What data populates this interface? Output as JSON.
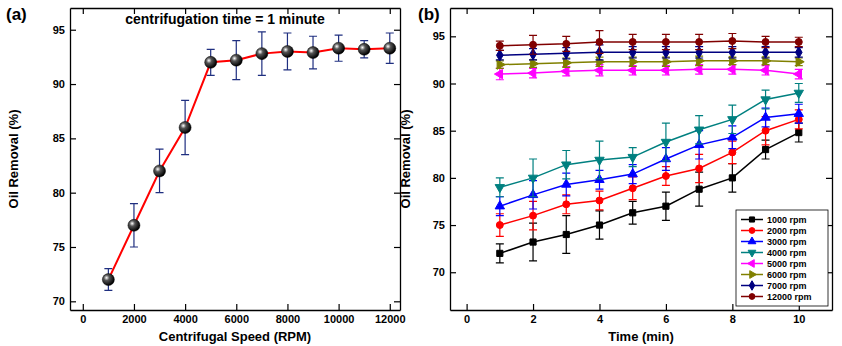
{
  "chart_data": [
    {
      "type": "line",
      "title": "(a)",
      "annotations": [
        "centrifugation time = 1 minute"
      ],
      "x_label": "Centrifugal Speed (RPM)",
      "y_label": "Oil Removal (%)",
      "x": [
        1000,
        2000,
        3000,
        4000,
        5000,
        6000,
        7000,
        8000,
        9000,
        10000,
        11000,
        12000
      ],
      "values": [
        72,
        77,
        82,
        86,
        92,
        92.2,
        92.8,
        93,
        92.9,
        93.3,
        93.2,
        93.3
      ],
      "errors": [
        1,
        2,
        2,
        2.5,
        1.2,
        1.8,
        2,
        1.7,
        1.5,
        1.2,
        0.8,
        1.4
      ],
      "color": "#ff0000",
      "marker": "sphere",
      "xlim": [
        -500,
        12400
      ],
      "ylim": [
        69.2,
        97
      ],
      "xticks": [
        0,
        2000,
        4000,
        6000,
        8000,
        10000,
        12000
      ],
      "yticks": [
        70,
        75,
        80,
        85,
        90,
        95
      ]
    },
    {
      "type": "line",
      "title": "(b)",
      "x_label": "Time (min)",
      "y_label": "Oil Removal (%)",
      "x": [
        1,
        2,
        3,
        4,
        5,
        6,
        7,
        8,
        9,
        10
      ],
      "series": [
        {
          "name": "1000 rpm",
          "color": "#000000",
          "marker": "square",
          "values": [
            72,
            73.2,
            74,
            75,
            76.3,
            77,
            78.8,
            80,
            83,
            84.8
          ],
          "errors": [
            1,
            2,
            2,
            1.5,
            1.2,
            1.5,
            1.8,
            1.5,
            1,
            1
          ]
        },
        {
          "name": "2000 rpm",
          "color": "#ff0000",
          "marker": "circle",
          "values": [
            75,
            76,
            77.2,
            77.6,
            78.9,
            80.2,
            81,
            82.7,
            85,
            86.2
          ],
          "errors": [
            1.2,
            1.5,
            1,
            1,
            1.2,
            1,
            1.5,
            1.2,
            1.5,
            1
          ]
        },
        {
          "name": "3000 rpm",
          "color": "#0000ff",
          "marker": "triangle-up",
          "values": [
            77,
            78.2,
            79.3,
            79.8,
            80.4,
            82,
            83.5,
            84.3,
            86.4,
            86.8
          ],
          "errors": [
            1,
            1.5,
            1.2,
            1,
            1,
            1.2,
            1.5,
            1.2,
            1,
            1
          ]
        },
        {
          "name": "4000 rpm",
          "color": "#008080",
          "marker": "triangle-down",
          "values": [
            79,
            80,
            81.4,
            81.9,
            82.2,
            83.8,
            85.1,
            86.2,
            88.3,
            89
          ],
          "errors": [
            1,
            2,
            1.5,
            2,
            1,
            2,
            1.5,
            1.5,
            1,
            1
          ]
        },
        {
          "name": "5000 rpm",
          "color": "#ff00ff",
          "marker": "triangle-left",
          "values": [
            91,
            91.1,
            91.3,
            91.4,
            91.4,
            91.4,
            91.5,
            91.5,
            91.4,
            91
          ],
          "errors": [
            0.6,
            0.5,
            0.5,
            0.6,
            0.5,
            0.5,
            0.5,
            0.5,
            0.5,
            0.5
          ]
        },
        {
          "name": "6000 rpm",
          "color": "#808000",
          "marker": "triangle-right",
          "values": [
            92,
            92.1,
            92.2,
            92.3,
            92.3,
            92.3,
            92.4,
            92.4,
            92.4,
            92.3
          ],
          "errors": [
            0.4,
            0.4,
            0.5,
            0.5,
            0.5,
            0.5,
            0.5,
            0.4,
            0.4,
            0.4
          ]
        },
        {
          "name": "7000 rpm",
          "color": "#000080",
          "marker": "diamond",
          "values": [
            93,
            93.1,
            93.2,
            93.3,
            93.3,
            93.3,
            93.3,
            93.3,
            93.3,
            93.3
          ],
          "errors": [
            0.5,
            0.6,
            0.6,
            0.8,
            0.6,
            0.6,
            0.6,
            0.6,
            0.6,
            0.5
          ]
        },
        {
          "name": "12000 rpm",
          "color": "#800000",
          "marker": "circle",
          "values": [
            94,
            94.1,
            94.2,
            94.4,
            94.4,
            94.4,
            94.4,
            94.5,
            94.4,
            94.4
          ],
          "errors": [
            0.5,
            1,
            0.8,
            1.2,
            0.8,
            0.8,
            0.8,
            0.8,
            0.6,
            0.5
          ]
        }
      ],
      "legend": "lower right",
      "xlim": [
        -0.5,
        11
      ],
      "ylim": [
        66,
        98
      ],
      "xticks": [
        0,
        2,
        4,
        6,
        8,
        10
      ],
      "yticks": [
        70,
        75,
        80,
        85,
        90,
        95
      ]
    }
  ]
}
